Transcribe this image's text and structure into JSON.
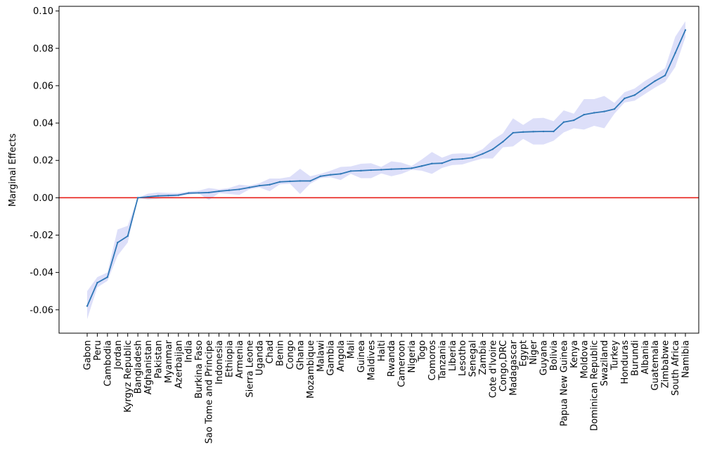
{
  "chart_data": {
    "type": "line",
    "title": "",
    "xlabel": "",
    "ylabel": "Marginal Effects",
    "ylim": [
      -0.0725,
      0.1025
    ],
    "yticks": [
      0.1,
      0.08,
      0.06,
      0.04,
      0.02,
      0.0,
      -0.02,
      -0.04,
      -0.06
    ],
    "ytick_labels": [
      "0.10",
      "0.08",
      "0.06",
      "0.04",
      "0.02",
      "0.00",
      "-0.02",
      "-0.04",
      "-0.06"
    ],
    "grid": false,
    "legend": "none",
    "reference_line": {
      "y": 0.0,
      "color": "#e8221c"
    },
    "colors": {
      "line": "#2f78b7",
      "band": "#9fa3ee",
      "axis": "#000000"
    },
    "categories": [
      "Gabon",
      "Peru",
      "Cambodia",
      "Jordan",
      "Kyrgyz Republic",
      "Bangladesh",
      "Afghanistan",
      "Pakistan",
      "Myanmar",
      "Azerbaijan",
      "India",
      "Burkina Faso",
      "Sao Tome and Principe",
      "Indonesia",
      "Ethiopia",
      "Armenia",
      "Sierra Leone",
      "Uganda",
      "Chad",
      "Benin",
      "Congo",
      "Ghana",
      "Mozambique",
      "Malawi",
      "Gambia",
      "Angola",
      "Mali",
      "Guinea",
      "Maldives",
      "Haiti",
      "Rwanda",
      "Cameroon",
      "Nigeria",
      "Togo",
      "Comoros",
      "Tanzania",
      "Liberia",
      "Lesotho",
      "Senegal",
      "Zambia",
      "Cote d'Ivoire",
      "Congo,DRC",
      "Madagascar",
      "Egypt",
      "Niger",
      "Guyana",
      "Bolivia",
      "Papua New Guinea",
      "Kenya",
      "Moldova",
      "Dominican Republic",
      "Swaziland",
      "Turkey",
      "Honduras",
      "Burundi",
      "Albania",
      "Guatemala",
      "Zimbabwe",
      "South Africa",
      "Namibia"
    ],
    "series": [
      {
        "values": [
          -0.058,
          -0.0455,
          -0.0425,
          -0.024,
          -0.0205,
          0.0,
          0.0005,
          0.001,
          0.0012,
          0.0014,
          0.0025,
          0.0026,
          0.0028,
          0.0035,
          0.004,
          0.0045,
          0.0055,
          0.0065,
          0.007,
          0.0085,
          0.0088,
          0.009,
          0.009,
          0.0115,
          0.0123,
          0.0128,
          0.0143,
          0.0145,
          0.0148,
          0.015,
          0.0153,
          0.0155,
          0.0158,
          0.017,
          0.0183,
          0.0185,
          0.0205,
          0.0208,
          0.0215,
          0.0235,
          0.026,
          0.03,
          0.0348,
          0.0352,
          0.0354,
          0.0355,
          0.0355,
          0.0405,
          0.0415,
          0.0445,
          0.0455,
          0.0462,
          0.0475,
          0.0532,
          0.055,
          0.0588,
          0.0625,
          0.0655,
          0.0775,
          0.0898
        ],
        "lower": [
          -0.065,
          -0.048,
          -0.0445,
          -0.031,
          -0.024,
          0.0,
          -0.001,
          -0.0005,
          0.0001,
          0.0007,
          0.0017,
          0.0023,
          -0.0012,
          0.0025,
          0.002,
          0.0015,
          0.0045,
          0.0055,
          0.0035,
          0.0072,
          0.0075,
          0.002,
          0.0075,
          0.0105,
          0.011,
          0.0095,
          0.0128,
          0.0105,
          0.0105,
          0.013,
          0.0115,
          0.0128,
          0.015,
          0.0145,
          0.0128,
          0.016,
          0.0175,
          0.0178,
          0.0195,
          0.021,
          0.021,
          0.027,
          0.0275,
          0.0315,
          0.0285,
          0.0285,
          0.0305,
          0.035,
          0.0372,
          0.0365,
          0.0385,
          0.0372,
          0.045,
          0.051,
          0.052,
          0.0555,
          0.059,
          0.062,
          0.07,
          0.086
        ],
        "upper": [
          -0.05,
          -0.0425,
          -0.04,
          -0.017,
          -0.015,
          0.0,
          0.0022,
          0.0028,
          0.0026,
          0.0025,
          0.0033,
          0.0038,
          0.0052,
          0.0045,
          0.0052,
          0.007,
          0.0065,
          0.0078,
          0.0103,
          0.0103,
          0.0112,
          0.0155,
          0.0115,
          0.0128,
          0.0145,
          0.0165,
          0.0168,
          0.0182,
          0.0185,
          0.0165,
          0.0195,
          0.0188,
          0.017,
          0.0205,
          0.0245,
          0.0215,
          0.0235,
          0.0238,
          0.0235,
          0.026,
          0.031,
          0.0345,
          0.0425,
          0.039,
          0.0425,
          0.0428,
          0.041,
          0.0468,
          0.045,
          0.0528,
          0.0528,
          0.0545,
          0.0508,
          0.0565,
          0.0585,
          0.0625,
          0.0658,
          0.0695,
          0.0862,
          0.0945
        ]
      }
    ]
  }
}
